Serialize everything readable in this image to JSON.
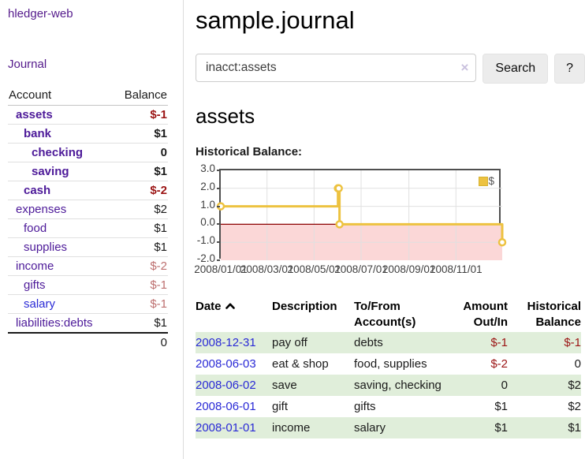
{
  "colors": {
    "link_purple": "#4d1a99",
    "link_blue": "#2a2ad6",
    "negative_red": "#9b1414",
    "negative_muted_red": "#bd6f6f",
    "row_green": "#e0eeda",
    "chart_series_yellow": "#edc240",
    "chart_negative_region": "#fbd7d7",
    "chart_zero_line": "#8b0000"
  },
  "sidebar": {
    "brand": "hledger-web",
    "nav": [
      {
        "label": "Journal"
      }
    ],
    "accounts_table": {
      "headers": [
        "Account",
        "Balance"
      ],
      "rows": [
        {
          "account": "assets",
          "balance": "$-1",
          "indent": 1,
          "in_account": true,
          "balance_tone": "negative"
        },
        {
          "account": "bank",
          "balance": "$1",
          "indent": 2,
          "in_account": true,
          "balance_tone": "normal"
        },
        {
          "account": "checking",
          "balance": "0",
          "indent": 3,
          "in_account": true,
          "balance_tone": "normal"
        },
        {
          "account": "saving",
          "balance": "$1",
          "indent": 3,
          "in_account": true,
          "balance_tone": "normal"
        },
        {
          "account": "cash",
          "balance": "$-2",
          "indent": 2,
          "in_account": true,
          "balance_tone": "negative"
        },
        {
          "account": "expenses",
          "balance": "$2",
          "indent": 1,
          "in_account": false,
          "balance_tone": "normal"
        },
        {
          "account": "food",
          "balance": "$1",
          "indent": 2,
          "in_account": false,
          "balance_tone": "normal"
        },
        {
          "account": "supplies",
          "balance": "$1",
          "indent": 2,
          "in_account": false,
          "balance_tone": "normal"
        },
        {
          "account": "income",
          "balance": "$-2",
          "indent": 1,
          "in_account": false,
          "balance_tone": "negative-muted"
        },
        {
          "account": "gifts",
          "balance": "$-1",
          "indent": 2,
          "in_account": false,
          "balance_tone": "negative-muted"
        },
        {
          "account": "salary",
          "balance": "$-1",
          "indent": 2,
          "in_account": false,
          "balance_tone": "negative-muted",
          "link_state": "unvisited"
        },
        {
          "account": "liabilities:debts",
          "balance": "$1",
          "indent": 1,
          "in_account": false,
          "balance_tone": "normal"
        }
      ],
      "total": "0"
    }
  },
  "header": {
    "title": "sample.journal"
  },
  "search": {
    "value": "inacct:assets",
    "clear_icon": "×",
    "button_label": "Search",
    "help_label": "?"
  },
  "account_page": {
    "heading": "assets",
    "chart_label": "Historical Balance:"
  },
  "chart_data": {
    "type": "line",
    "style": "step-after",
    "title": "Historical Balance",
    "series": [
      {
        "name": "$",
        "color": "#edc240",
        "points": [
          [
            "2008-01-01",
            1
          ],
          [
            "2008-06-01",
            2
          ],
          [
            "2008-06-02",
            2
          ],
          [
            "2008-06-03",
            0
          ],
          [
            "2008-12-31",
            -1
          ]
        ]
      }
    ],
    "xlim": [
      "2008-01-01",
      "2008-12-31"
    ],
    "ylim": [
      -2,
      3
    ],
    "yticks": [
      3,
      2,
      1,
      0,
      -1,
      -2
    ],
    "ytick_labels": [
      "3.0",
      "2.0",
      "1.0",
      "0.0",
      "-1.0",
      "-2.0"
    ],
    "xticks": [
      "2008-01-01",
      "2008-03-01",
      "2008-05-01",
      "2008-07-01",
      "2008-09-01",
      "2008-11-01"
    ],
    "xtick_labels": [
      "2008/01/01",
      "2008/03/01",
      "2008/05/01",
      "2008/07/01",
      "2008/09/01",
      "2008/11/01"
    ],
    "grid": true,
    "legend_position": "top-right",
    "negative_region": {
      "below": 0,
      "color": "#fbd7d7"
    },
    "zero_line_color": "#8b0000"
  },
  "transactions": {
    "headers": [
      "Date",
      "Description",
      "To/From Account(s)",
      "Amount Out/In",
      "Historical Balance"
    ],
    "sort": {
      "column": "Date",
      "direction": "ascending",
      "icon": "chevron-up"
    },
    "rows": [
      {
        "date": "2008-12-31",
        "description": "pay off",
        "accounts": "debts",
        "amount": "$-1",
        "balance": "$-1"
      },
      {
        "date": "2008-06-03",
        "description": "eat & shop",
        "accounts": "food, supplies",
        "amount": "$-2",
        "balance": "0"
      },
      {
        "date": "2008-06-02",
        "description": "save",
        "accounts": "saving, checking",
        "amount": "0",
        "balance": "$2"
      },
      {
        "date": "2008-06-01",
        "description": "gift",
        "accounts": "gifts",
        "amount": "$1",
        "balance": "$2"
      },
      {
        "date": "2008-01-01",
        "description": "income",
        "accounts": "salary",
        "amount": "$1",
        "balance": "$1"
      }
    ]
  }
}
